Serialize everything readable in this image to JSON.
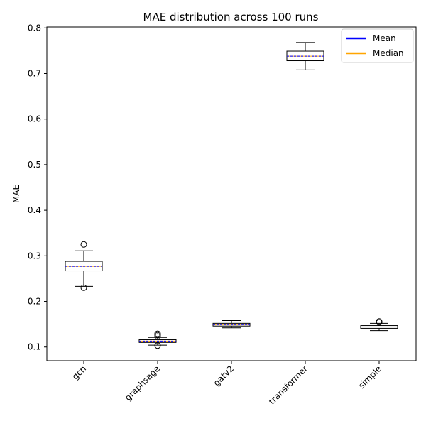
{
  "chart_data": {
    "type": "box",
    "title": "MAE distribution across 100 runs",
    "xlabel": "",
    "ylabel": "MAE",
    "ylim": [
      0.07,
      0.802
    ],
    "yticks": [
      0.1,
      0.2,
      0.3,
      0.4,
      0.5,
      0.6,
      0.7,
      0.8
    ],
    "ytick_labels": [
      "0.1",
      "0.2",
      "0.3",
      "0.4",
      "0.5",
      "0.6",
      "0.7",
      "0.8"
    ],
    "categories": [
      "gcn",
      "graphsage",
      "gatv2",
      "transformer",
      "simple"
    ],
    "boxes": [
      {
        "name": "gcn",
        "whisker_low": 0.233,
        "q1": 0.267,
        "median": 0.277,
        "mean": 0.277,
        "q3": 0.288,
        "whisker_high": 0.311,
        "outliers": [
          0.325,
          0.23
        ]
      },
      {
        "name": "graphsage",
        "whisker_low": 0.104,
        "q1": 0.11,
        "median": 0.113,
        "mean": 0.113,
        "q3": 0.116,
        "whisker_high": 0.121,
        "outliers": [
          0.129,
          0.126,
          0.123,
          0.103
        ]
      },
      {
        "name": "gatv2",
        "whisker_low": 0.142,
        "q1": 0.146,
        "median": 0.149,
        "mean": 0.149,
        "q3": 0.152,
        "whisker_high": 0.158,
        "outliers": []
      },
      {
        "name": "transformer",
        "whisker_low": 0.708,
        "q1": 0.728,
        "median": 0.738,
        "mean": 0.738,
        "q3": 0.749,
        "whisker_high": 0.768,
        "outliers": []
      },
      {
        "name": "simple",
        "whisker_low": 0.136,
        "q1": 0.141,
        "median": 0.144,
        "mean": 0.144,
        "q3": 0.147,
        "whisker_high": 0.152,
        "outliers": [
          0.156,
          0.154
        ]
      }
    ],
    "legend": {
      "placement": "top-right",
      "entries": [
        {
          "label": "Mean",
          "color": "#0000ff"
        },
        {
          "label": "Median",
          "color": "#ffa500"
        }
      ]
    },
    "colors": {
      "mean": "#0000ff",
      "median": "#ffa500",
      "box": "#000000"
    },
    "grid": false
  }
}
